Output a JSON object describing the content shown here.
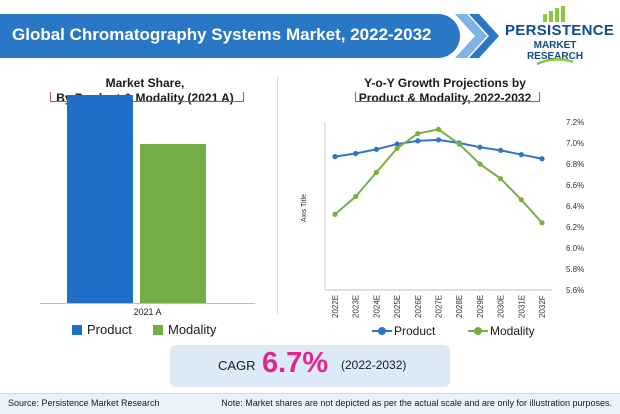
{
  "header": {
    "title": "Global Chromatography Systems Market, 2022-2032"
  },
  "logo": {
    "line1": "PERSISTENCE",
    "line2": "MARKET RESEARCH"
  },
  "colors": {
    "header_blue": "#2a77c6",
    "product_blue": "#1f6fc6",
    "modality_green": "#72ad46",
    "accent_pink": "#e0268f",
    "bracket_red": "#c0504d"
  },
  "chart_data": [
    {
      "type": "bar",
      "title": "Market Share,\nBy Product & Modality (2021 A)",
      "title_line1": "Market Share,",
      "title_line2": "By Product & Modality (2021 A)",
      "categories": [
        "2021 A"
      ],
      "series": [
        {
          "name": "Product",
          "values": [
            0.85
          ]
        },
        {
          "name": "Modality",
          "values": [
            0.65
          ]
        }
      ],
      "value_axis_shown": false,
      "legend": "bottom"
    },
    {
      "type": "line",
      "title_line1": "Y-o-Y Growth Projections by",
      "title_line2": "Product & Modality, 2022-2032",
      "x": [
        "2022E",
        "2023E",
        "2024E",
        "2025E",
        "2026E",
        "2027E",
        "2028E",
        "2029E",
        "2030E",
        "2031E",
        "2032F"
      ],
      "series": [
        {
          "name": "Product",
          "values": [
            6.87,
            6.9,
            6.94,
            6.99,
            7.02,
            7.03,
            7.0,
            6.96,
            6.93,
            6.89,
            6.85
          ]
        },
        {
          "name": "Modality",
          "values": [
            6.32,
            6.49,
            6.72,
            6.95,
            7.09,
            7.13,
            6.99,
            6.8,
            6.66,
            6.46,
            6.24
          ]
        }
      ],
      "ylabel": "Axis Title",
      "ylim": [
        5.6,
        7.2
      ],
      "yticks": [
        "7.2%",
        "7.0%",
        "6.8%",
        "6.6%",
        "6.4%",
        "6.2%",
        "6.0%",
        "5.8%",
        "5.6%"
      ],
      "y_axis_side": "right",
      "legend": "bottom"
    }
  ],
  "cagr": {
    "label": "CAGR",
    "value": "6.7%",
    "period": "(2022-2032)"
  },
  "footer": {
    "source": "Source: Persistence Market Research",
    "note": "Note: Market shares are not depicted as per the actual scale and are only for illustration purposes."
  }
}
